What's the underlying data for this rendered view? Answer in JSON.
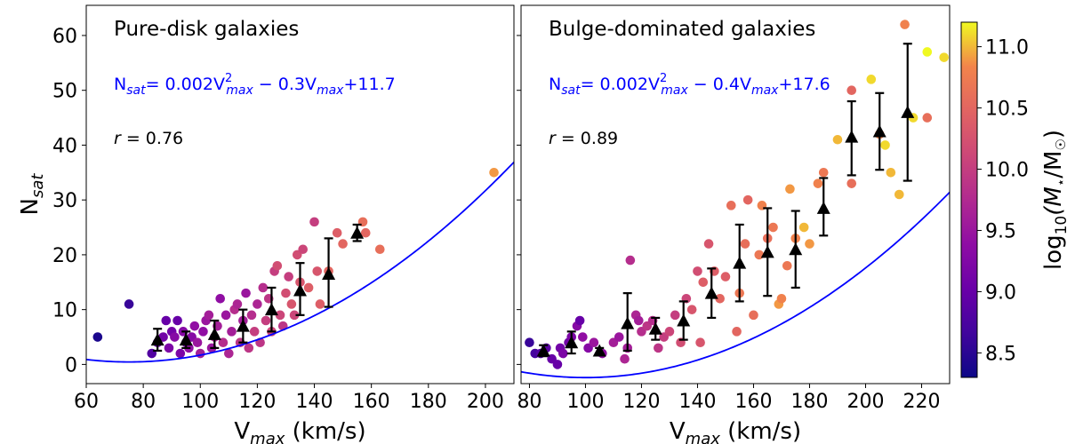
{
  "chart_data": [
    {
      "type": "scatter",
      "title": "Pure-disk galaxies",
      "xlabel": "V",
      "xlabel_sub": "max",
      "xlabel_unit": " (km/s)",
      "ylabel": "N",
      "ylabel_sub": "sat",
      "xlim": [
        60,
        210
      ],
      "ylim": [
        -3.5,
        65.5
      ],
      "xticks": [
        60,
        80,
        100,
        120,
        140,
        160,
        180,
        200
      ],
      "yticks": [
        0,
        10,
        20,
        30,
        40,
        50,
        60
      ],
      "equation": {
        "prefix": "N",
        "prefix_sub": "sat",
        "a": "= 0.002V",
        "sup": "2",
        "sub1": "max",
        "b": " − 0.3V",
        "sub2": "max",
        "c": "+11.7"
      },
      "fit": {
        "a": 0.002,
        "b": -0.3,
        "c": 11.7,
        "color": "#0000ff"
      },
      "r_label": "r",
      "r_value": "= 0.76",
      "points": [
        [
          64,
          5,
          8.4
        ],
        [
          75,
          11,
          8.6
        ],
        [
          83,
          2,
          8.8
        ],
        [
          85,
          4,
          9.0
        ],
        [
          87,
          5,
          9.1
        ],
        [
          88,
          8,
          9.0
        ],
        [
          89,
          3,
          9.2
        ],
        [
          90,
          6,
          9.1
        ],
        [
          91,
          5,
          9.3
        ],
        [
          92,
          8,
          9.0
        ],
        [
          93,
          2,
          9.2
        ],
        [
          94,
          6,
          9.3
        ],
        [
          95,
          4,
          9.1
        ],
        [
          96,
          3,
          9.4
        ],
        [
          97,
          5,
          9.3
        ],
        [
          98,
          7,
          9.4
        ],
        [
          99,
          4,
          9.5
        ],
        [
          100,
          2,
          9.6
        ],
        [
          101,
          6,
          9.4
        ],
        [
          102,
          8,
          9.5
        ],
        [
          103,
          9,
          9.6
        ],
        [
          104,
          3,
          9.5
        ],
        [
          105,
          5,
          9.7
        ],
        [
          106,
          7,
          9.6
        ],
        [
          107,
          12,
          9.4
        ],
        [
          108,
          4,
          9.8
        ],
        [
          109,
          9,
          9.5
        ],
        [
          110,
          2,
          9.7
        ],
        [
          111,
          6,
          9.6
        ],
        [
          112,
          10,
          9.8
        ],
        [
          113,
          11,
          9.7
        ],
        [
          114,
          4,
          9.9
        ],
        [
          115,
          8,
          9.6
        ],
        [
          116,
          13,
          9.5
        ],
        [
          117,
          3,
          9.9
        ],
        [
          118,
          9,
          9.8
        ],
        [
          119,
          6,
          10.0
        ],
        [
          120,
          11,
          9.7
        ],
        [
          121,
          4,
          9.9
        ],
        [
          122,
          14,
          9.8
        ],
        [
          123,
          8,
          10.0
        ],
        [
          124,
          12,
          9.9
        ],
        [
          125,
          6,
          10.1
        ],
        [
          126,
          17,
          10.0
        ],
        [
          127,
          18,
          10.2
        ],
        [
          128,
          9,
          10.1
        ],
        [
          129,
          7,
          9.9
        ],
        [
          130,
          13,
          10.2
        ],
        [
          131,
          16,
          10.0
        ],
        [
          132,
          11,
          10.3
        ],
        [
          133,
          9,
          10.1
        ],
        [
          134,
          20,
          10.2
        ],
        [
          135,
          15,
          10.3
        ],
        [
          136,
          21,
          10.1
        ],
        [
          138,
          14,
          10.4
        ],
        [
          140,
          26,
          10.0
        ],
        [
          141,
          17,
          10.3
        ],
        [
          142,
          11,
          10.4
        ],
        [
          145,
          17,
          10.5
        ],
        [
          148,
          24,
          10.4
        ],
        [
          150,
          22,
          10.5
        ],
        [
          157,
          26,
          10.6
        ],
        [
          158,
          24,
          10.5
        ],
        [
          163,
          21,
          10.6
        ],
        [
          203,
          35,
          10.9
        ]
      ],
      "binned": [
        {
          "x": 85,
          "y": 4.5,
          "lo": 2.5,
          "hi": 6.5
        },
        {
          "x": 95,
          "y": 4.5,
          "lo": 3.0,
          "hi": 6.0
        },
        {
          "x": 105,
          "y": 5.5,
          "lo": 3.0,
          "hi": 8.0
        },
        {
          "x": 115,
          "y": 7.0,
          "lo": 4.0,
          "hi": 10.0
        },
        {
          "x": 125,
          "y": 10.0,
          "lo": 6.0,
          "hi": 14.0
        },
        {
          "x": 135,
          "y": 13.5,
          "lo": 9.0,
          "hi": 18.5
        },
        {
          "x": 145,
          "y": 16.5,
          "lo": 10.5,
          "hi": 23.0
        },
        {
          "x": 155,
          "y": 24.0,
          "lo": 22.5,
          "hi": 25.5
        }
      ]
    },
    {
      "type": "scatter",
      "title": "Bulge-dominated galaxies",
      "xlabel": "V",
      "xlabel_sub": "max",
      "xlabel_unit": " (km/s)",
      "xlim": [
        77,
        230
      ],
      "ylim": [
        -3.5,
        65.5
      ],
      "xticks": [
        80,
        100,
        120,
        140,
        160,
        180,
        200,
        220
      ],
      "yticks": [
        0,
        10,
        20,
        30,
        40,
        50,
        60
      ],
      "equation": {
        "prefix": "N",
        "prefix_sub": "sat",
        "a": "= 0.002V",
        "sup": "2",
        "sub1": "max",
        "b": " − 0.4V",
        "sub2": "max",
        "c": "+17.6"
      },
      "fit": {
        "a": 0.002,
        "b": -0.4,
        "c": 17.6,
        "color": "#0000ff"
      },
      "r_label": "r",
      "r_value": "= 0.89",
      "points": [
        [
          80,
          4,
          8.6
        ],
        [
          82,
          2,
          8.7
        ],
        [
          84,
          2,
          8.8
        ],
        [
          86,
          3,
          8.9
        ],
        [
          88,
          1,
          9.0
        ],
        [
          90,
          0,
          9.0
        ],
        [
          91,
          3,
          9.1
        ],
        [
          92,
          2,
          9.2
        ],
        [
          94,
          4,
          9.1
        ],
        [
          95,
          5,
          9.2
        ],
        [
          97,
          7,
          9.3
        ],
        [
          98,
          8,
          9.0
        ],
        [
          99,
          5,
          9.4
        ],
        [
          101,
          3,
          9.3
        ],
        [
          103,
          4,
          9.5
        ],
        [
          106,
          2,
          9.4
        ],
        [
          110,
          4,
          9.6
        ],
        [
          112,
          5,
          9.5
        ],
        [
          114,
          1,
          9.7
        ],
        [
          115,
          3,
          9.6
        ],
        [
          116,
          19,
          9.8
        ],
        [
          118,
          9,
          9.7
        ],
        [
          119,
          8,
          9.6
        ],
        [
          120,
          6,
          9.8
        ],
        [
          122,
          7,
          9.9
        ],
        [
          124,
          8,
          9.8
        ],
        [
          126,
          3,
          9.9
        ],
        [
          128,
          5,
          10.0
        ],
        [
          130,
          6,
          10.1
        ],
        [
          132,
          9,
          10.0
        ],
        [
          134,
          4,
          10.2
        ],
        [
          136,
          12,
          10.1
        ],
        [
          138,
          10,
          10.3
        ],
        [
          140,
          17,
          10.2
        ],
        [
          141,
          4,
          10.3
        ],
        [
          142,
          15,
          10.4
        ],
        [
          144,
          22,
          10.3
        ],
        [
          146,
          17,
          10.4
        ],
        [
          148,
          12,
          10.5
        ],
        [
          150,
          16,
          10.4
        ],
        [
          152,
          29,
          10.6
        ],
        [
          154,
          6,
          10.5
        ],
        [
          155,
          13,
          10.7
        ],
        [
          157,
          22,
          10.6
        ],
        [
          158,
          30,
          10.5
        ],
        [
          160,
          9,
          10.6
        ],
        [
          162,
          20,
          10.7
        ],
        [
          163,
          29,
          10.8
        ],
        [
          165,
          23,
          10.6
        ],
        [
          167,
          25,
          10.7
        ],
        [
          169,
          11,
          10.9
        ],
        [
          170,
          12,
          10.8
        ],
        [
          172,
          18,
          10.7
        ],
        [
          173,
          32,
          10.9
        ],
        [
          175,
          23,
          10.8
        ],
        [
          178,
          25,
          11.0
        ],
        [
          180,
          22,
          10.9
        ],
        [
          183,
          33,
          10.8
        ],
        [
          185,
          35,
          10.7
        ],
        [
          190,
          41,
          11.0
        ],
        [
          195,
          33,
          10.6
        ],
        [
          195,
          50,
          10.5
        ],
        [
          202,
          52,
          11.1
        ],
        [
          205,
          42,
          10.8
        ],
        [
          207,
          40,
          11.1
        ],
        [
          209,
          35,
          11.0
        ],
        [
          212,
          31,
          11.0
        ],
        [
          214,
          62,
          10.8
        ],
        [
          217,
          45,
          11.1
        ],
        [
          222,
          57,
          11.2
        ],
        [
          222,
          45,
          10.6
        ],
        [
          228,
          56,
          11.1
        ]
      ],
      "binned": [
        {
          "x": 85,
          "y": 2.5,
          "lo": 1.5,
          "hi": 3.5
        },
        {
          "x": 95,
          "y": 4.0,
          "lo": 2.0,
          "hi": 6.0
        },
        {
          "x": 105,
          "y": 2.5,
          "lo": 2.0,
          "hi": 3.0
        },
        {
          "x": 115,
          "y": 7.5,
          "lo": 2.5,
          "hi": 13.0
        },
        {
          "x": 125,
          "y": 6.5,
          "lo": 4.5,
          "hi": 8.5
        },
        {
          "x": 135,
          "y": 8.0,
          "lo": 4.5,
          "hi": 11.5
        },
        {
          "x": 145,
          "y": 13.0,
          "lo": 8.5,
          "hi": 17.5
        },
        {
          "x": 155,
          "y": 18.5,
          "lo": 11.5,
          "hi": 25.5
        },
        {
          "x": 165,
          "y": 20.5,
          "lo": 12.5,
          "hi": 28.5
        },
        {
          "x": 175,
          "y": 21.0,
          "lo": 14.0,
          "hi": 28.0
        },
        {
          "x": 185,
          "y": 28.5,
          "lo": 23.5,
          "hi": 34.0
        },
        {
          "x": 195,
          "y": 41.5,
          "lo": 34.5,
          "hi": 48.0
        },
        {
          "x": 205,
          "y": 42.5,
          "lo": 35.5,
          "hi": 49.5
        },
        {
          "x": 215,
          "y": 46.0,
          "lo": 33.5,
          "hi": 58.5
        }
      ]
    }
  ],
  "colorbar": {
    "label_prefix": "log",
    "label_sub": "10",
    "label_body": "(M",
    "label_star": "⋆",
    "label_mid": "/M",
    "label_sun": "☉",
    "label_end": ")",
    "cmap": "plasma",
    "vmin": 8.3,
    "vmax": 11.2,
    "ticks": [
      8.5,
      9.0,
      9.5,
      10.0,
      10.5,
      11.0
    ],
    "tick_labels": [
      "8.5",
      "9.0",
      "9.5",
      "10.0",
      "10.5",
      "11.0"
    ]
  }
}
